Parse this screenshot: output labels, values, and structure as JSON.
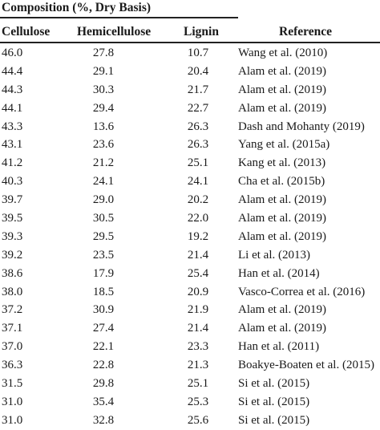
{
  "table": {
    "group_title": "Composition (%, Dry Basis)",
    "headers": {
      "cellulose": "Cellulose",
      "hemicellulose": "Hemicellulose",
      "lignin": "Lignin",
      "reference": "Reference"
    },
    "rows": [
      {
        "cellulose": "46.0",
        "hemicellulose": "27.8",
        "lignin": "10.7",
        "reference": "Wang et al. (2010)"
      },
      {
        "cellulose": "44.4",
        "hemicellulose": "29.1",
        "lignin": "20.4",
        "reference": "Alam et al. (2019)"
      },
      {
        "cellulose": "44.3",
        "hemicellulose": "30.3",
        "lignin": "21.7",
        "reference": "Alam et al. (2019)"
      },
      {
        "cellulose": "44.1",
        "hemicellulose": "29.4",
        "lignin": "22.7",
        "reference": "Alam et al. (2019)"
      },
      {
        "cellulose": "43.3",
        "hemicellulose": "13.6",
        "lignin": "26.3",
        "reference": "Dash and Mohanty (2019)"
      },
      {
        "cellulose": "43.1",
        "hemicellulose": "23.6",
        "lignin": "26.3",
        "reference": "Yang et al. (2015a)"
      },
      {
        "cellulose": "41.2",
        "hemicellulose": "21.2",
        "lignin": "25.1",
        "reference": "Kang et al. (2013)"
      },
      {
        "cellulose": "40.3",
        "hemicellulose": "24.1",
        "lignin": "24.1",
        "reference": "Cha et al. (2015b)"
      },
      {
        "cellulose": "39.7",
        "hemicellulose": "29.0",
        "lignin": "20.2",
        "reference": "Alam et al. (2019)"
      },
      {
        "cellulose": "39.5",
        "hemicellulose": "30.5",
        "lignin": "22.0",
        "reference": "Alam et al. (2019)"
      },
      {
        "cellulose": "39.3",
        "hemicellulose": "29.5",
        "lignin": "19.2",
        "reference": "Alam et al. (2019)"
      },
      {
        "cellulose": "39.2",
        "hemicellulose": "23.5",
        "lignin": "21.4",
        "reference": "Li et al. (2013)"
      },
      {
        "cellulose": "38.6",
        "hemicellulose": "17.9",
        "lignin": "25.4",
        "reference": "Han et al. (2014)"
      },
      {
        "cellulose": "38.0",
        "hemicellulose": "18.5",
        "lignin": "20.9",
        "reference": "Vasco-Correa et al. (2016)"
      },
      {
        "cellulose": "37.2",
        "hemicellulose": "30.9",
        "lignin": "21.9",
        "reference": "Alam et al. (2019)"
      },
      {
        "cellulose": "37.1",
        "hemicellulose": "27.4",
        "lignin": "21.4",
        "reference": "Alam et al. (2019)"
      },
      {
        "cellulose": "37.0",
        "hemicellulose": "22.1",
        "lignin": "23.3",
        "reference": "Han et al. (2011)"
      },
      {
        "cellulose": "36.3",
        "hemicellulose": "22.8",
        "lignin": "21.3",
        "reference": "Boakye-Boaten et al. (2015)"
      },
      {
        "cellulose": "31.5",
        "hemicellulose": "29.8",
        "lignin": "25.1",
        "reference": "Si et al. (2015)"
      },
      {
        "cellulose": "31.0",
        "hemicellulose": "35.4",
        "lignin": "25.3",
        "reference": "Si et al. (2015)"
      },
      {
        "cellulose": "31.0",
        "hemicellulose": "32.8",
        "lignin": "25.6",
        "reference": "Si et al. (2015)"
      }
    ]
  }
}
